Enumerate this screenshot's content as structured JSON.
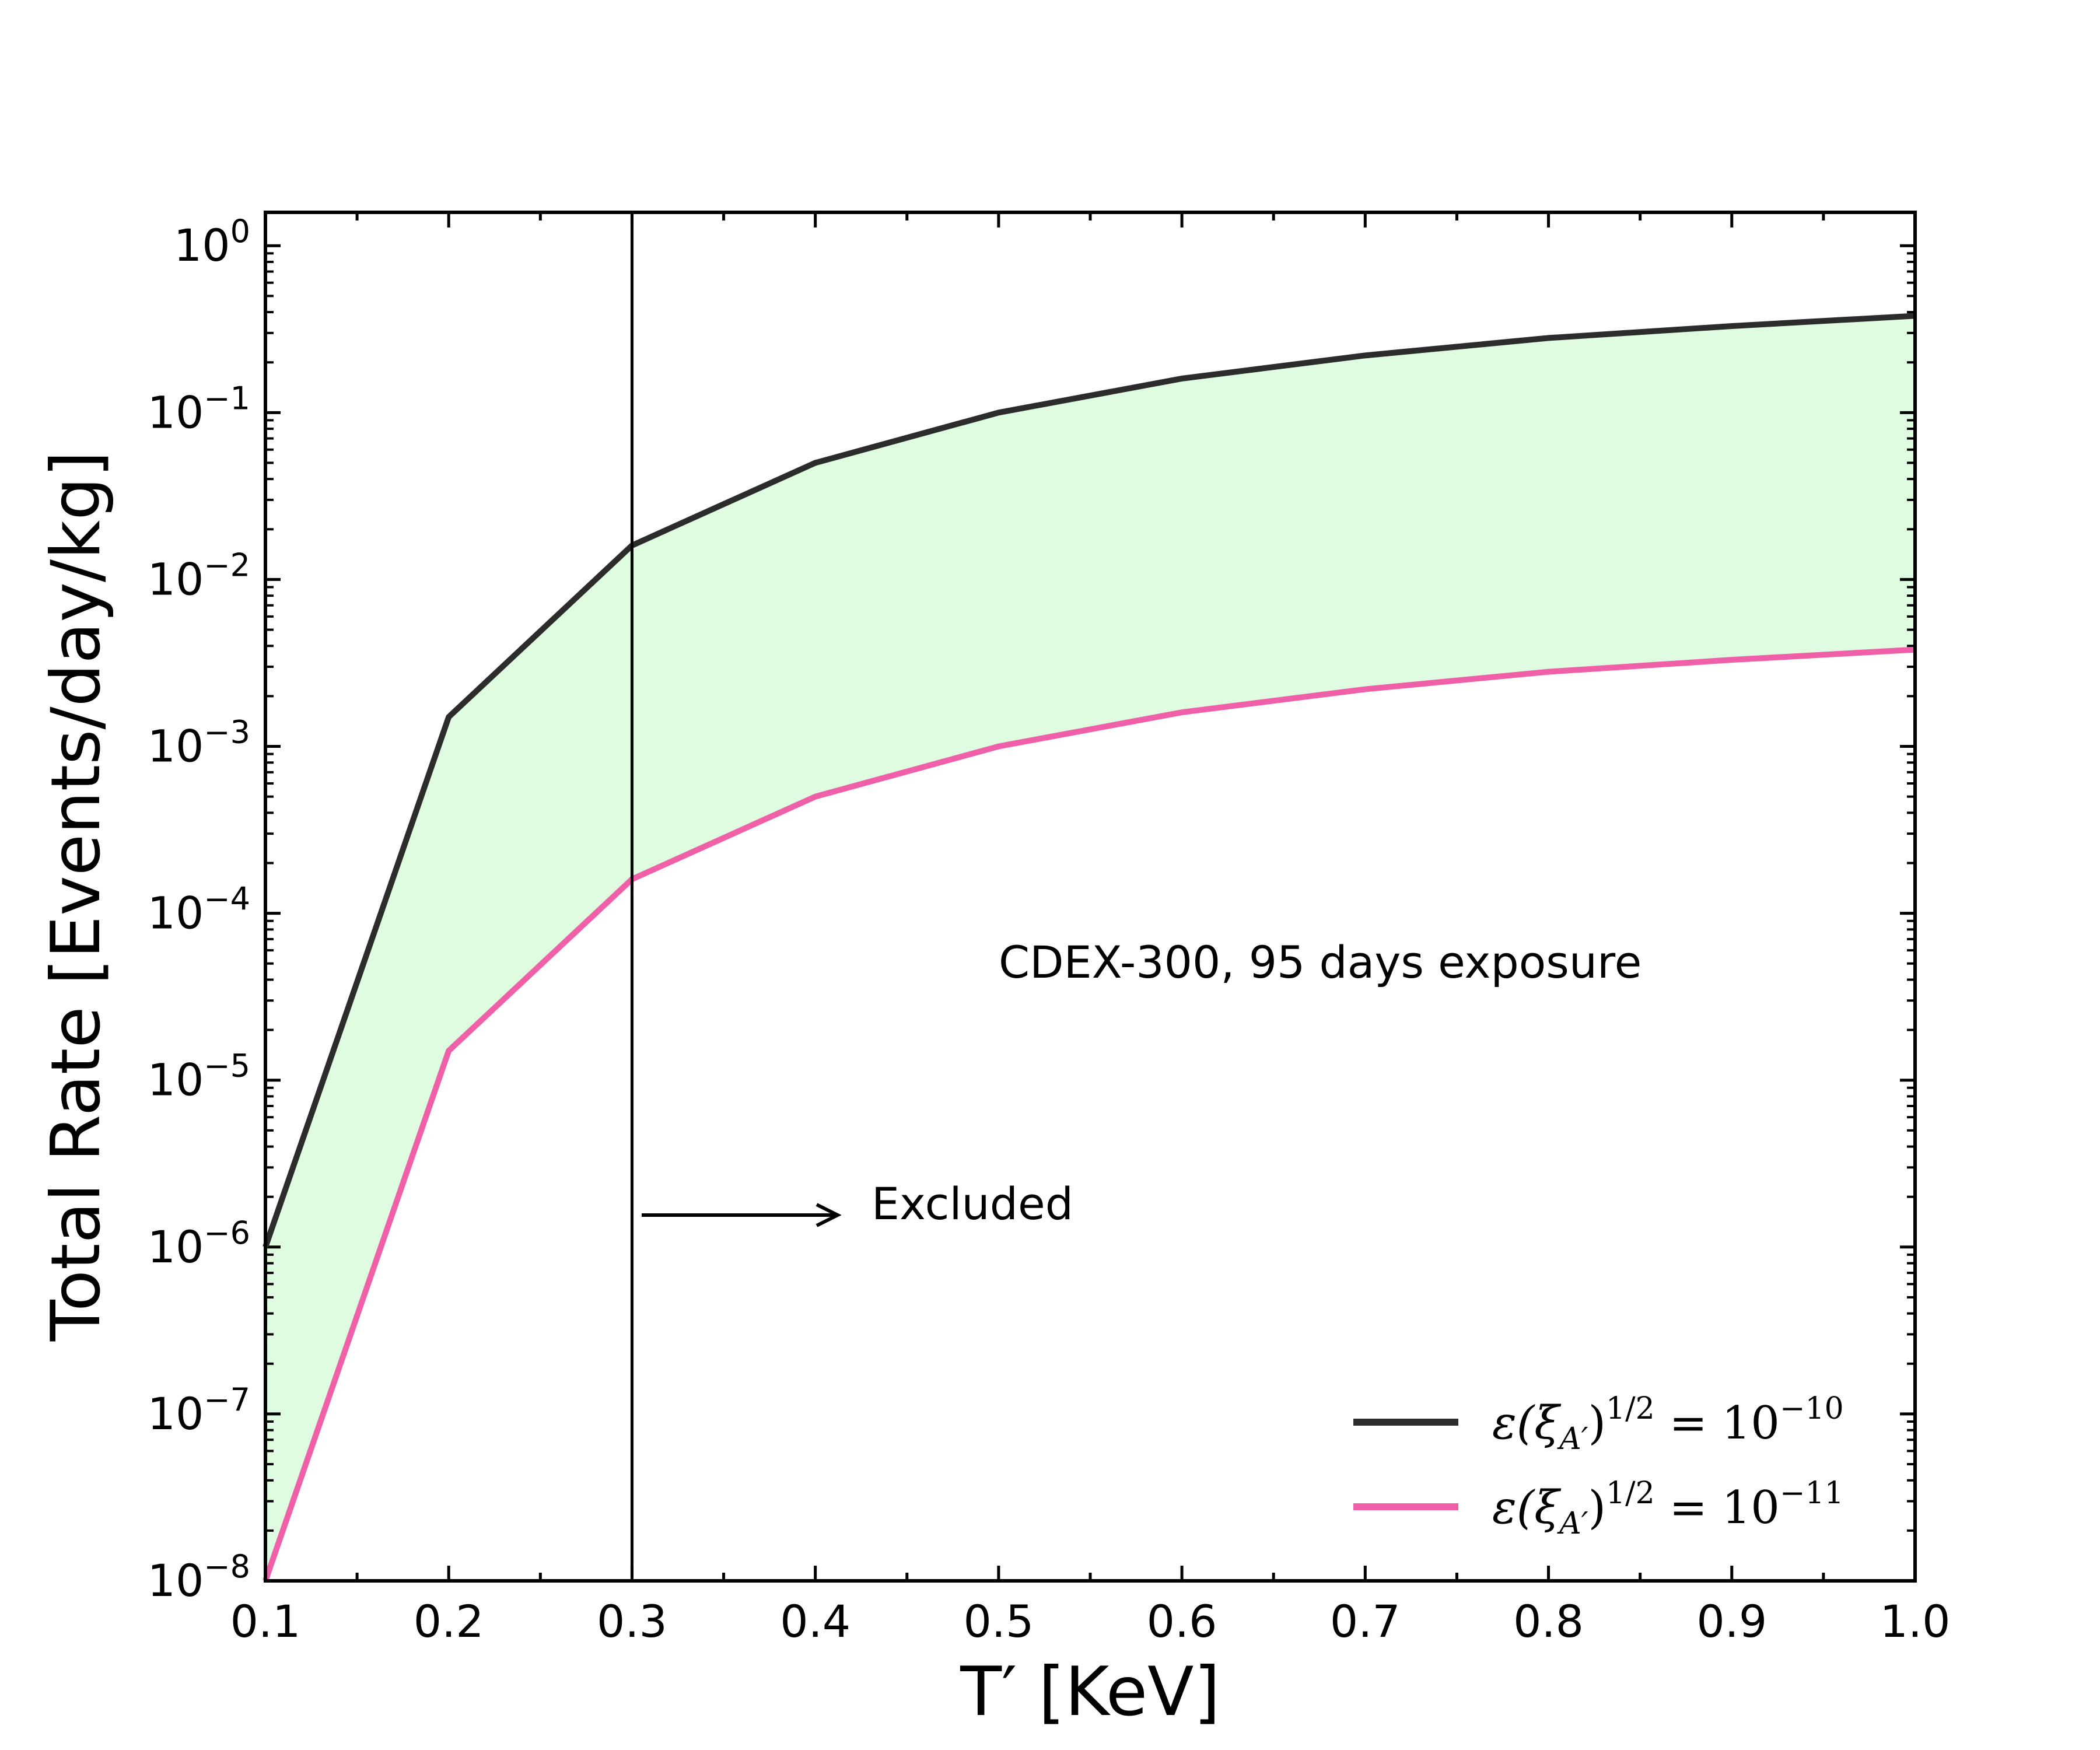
{
  "chart_data": {
    "type": "line",
    "xlabel": "T′ [KeV]",
    "ylabel": "Total Rate [Events/day/kg]",
    "xlim": [
      0.1,
      1.0
    ],
    "ylim_log10": [
      -8,
      0.2
    ],
    "y_scale": "log",
    "x_ticks": [
      "0.1",
      "0.2",
      "0.3",
      "0.4",
      "0.5",
      "0.6",
      "0.7",
      "0.8",
      "0.9",
      "1.0"
    ],
    "y_ticks": [
      {
        "base": "10",
        "exp": "0"
      },
      {
        "base": "10",
        "exp": "−1"
      },
      {
        "base": "10",
        "exp": "−2"
      },
      {
        "base": "10",
        "exp": "−3"
      },
      {
        "base": "10",
        "exp": "−4"
      },
      {
        "base": "10",
        "exp": "−5"
      },
      {
        "base": "10",
        "exp": "−6"
      },
      {
        "base": "10",
        "exp": "−7"
      },
      {
        "base": "10",
        "exp": "−8"
      }
    ],
    "x": [
      0.1,
      0.2,
      0.3,
      0.4,
      0.5,
      0.6,
      0.7,
      0.8,
      0.9,
      1.0
    ],
    "series": [
      {
        "name": "ε(ξA′)^1/2 = 10^−10",
        "color": "#2c2c2c",
        "values": [
          1e-06,
          0.0015,
          0.016,
          0.05,
          0.1,
          0.16,
          0.22,
          0.28,
          0.33,
          0.38
        ]
      },
      {
        "name": "ε(ξA′)^1/2 = 10^−11",
        "color": "#f060a8",
        "values": [
          1e-08,
          1.5e-05,
          0.00016,
          0.0005,
          0.001,
          0.0016,
          0.0022,
          0.0028,
          0.0033,
          0.0038
        ]
      }
    ],
    "fill_between": {
      "color": "#e0fce0"
    },
    "vertical_line": {
      "x": 0.3,
      "color": "#000000"
    },
    "annotations": [
      {
        "text": "CDEX-300, 95 days exposure"
      },
      {
        "text": "Excluded"
      }
    ],
    "legend": {
      "position": "bottom-right",
      "entries": [
        {
          "prefix": "ε(ξ",
          "sub": "A′",
          "mid": ")",
          "sup": "1/2",
          "eq": " = 10",
          "exp": "−10",
          "color": "#2c2c2c"
        },
        {
          "prefix": "ε(ξ",
          "sub": "A′",
          "mid": ")",
          "sup": "1/2",
          "eq": " = 10",
          "exp": "−11",
          "color": "#f060a8"
        }
      ]
    }
  }
}
